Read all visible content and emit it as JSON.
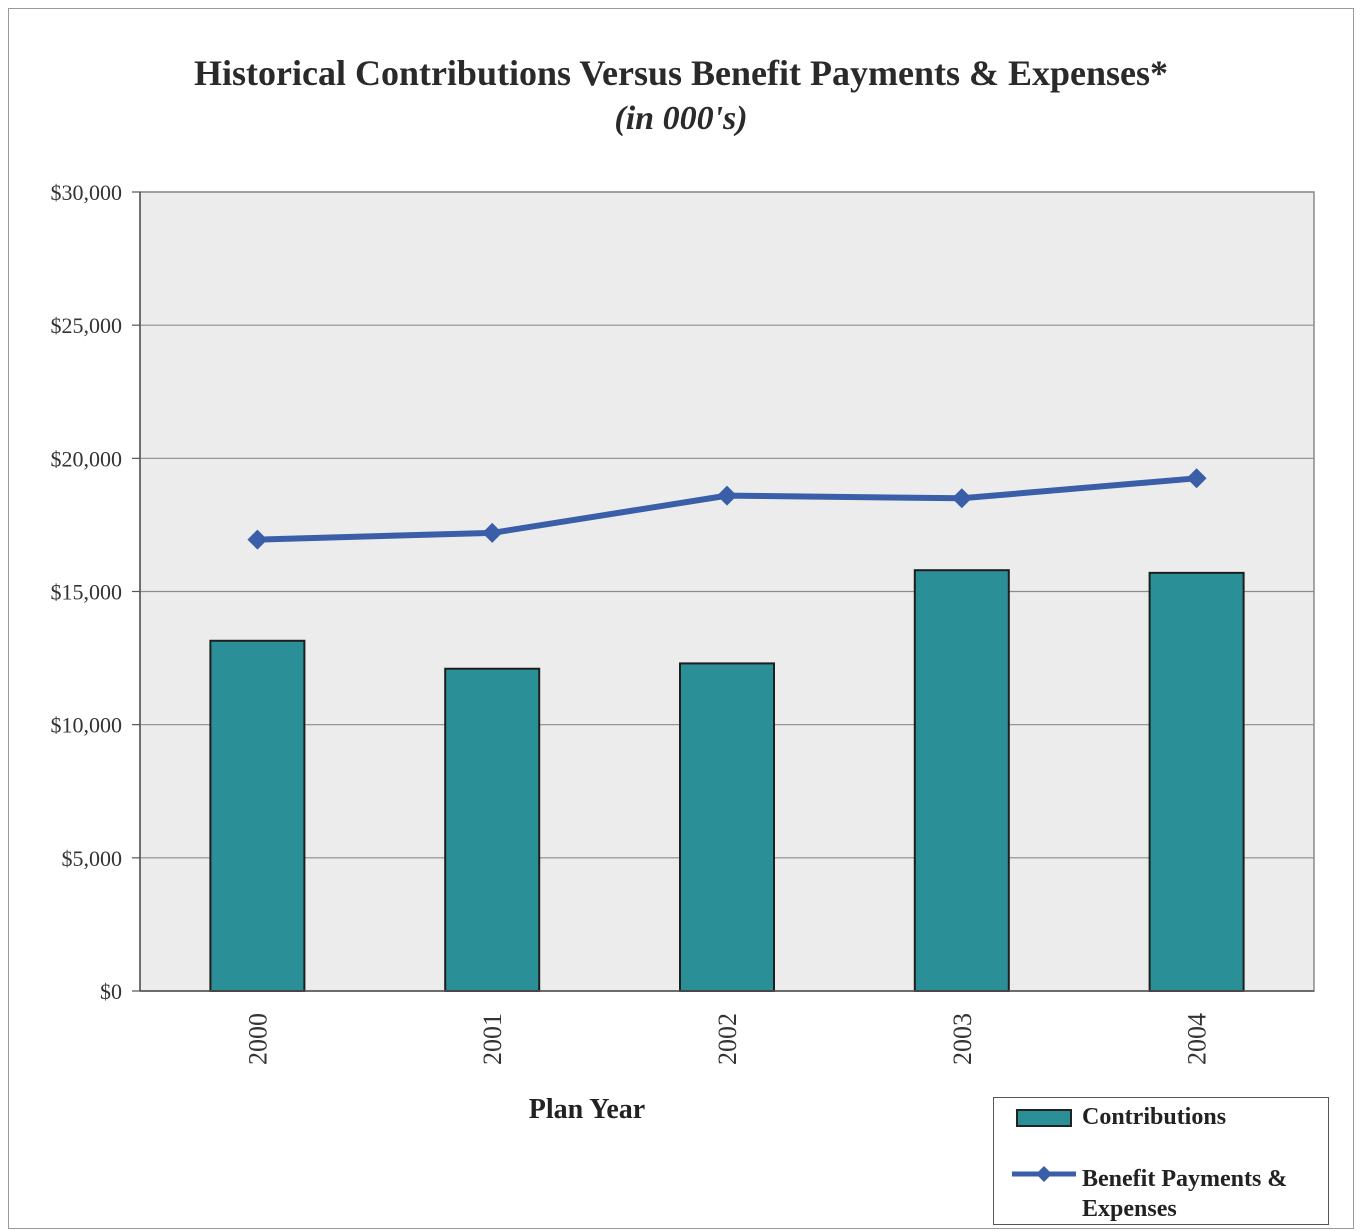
{
  "chart_data": {
    "type": "bar",
    "title": "Historical Contributions Versus Benefit Payments & Expenses*",
    "subtitle": "(in 000's)",
    "xlabel": "Plan Year",
    "ylabel": "",
    "categories": [
      "2000",
      "2001",
      "2002",
      "2003",
      "2004"
    ],
    "ylim": [
      0,
      30000
    ],
    "yticks": [
      "$0",
      "$5,000",
      "$10,000",
      "$15,000",
      "$20,000",
      "$25,000",
      "$30,000"
    ],
    "ytick_values": [
      0,
      5000,
      10000,
      15000,
      20000,
      25000,
      30000
    ],
    "series": [
      {
        "name": "Contributions",
        "type": "bar",
        "color": "#2a8f97",
        "values": [
          13150,
          12100,
          12300,
          15800,
          15700
        ]
      },
      {
        "name": "Benefit Payments & Expenses",
        "type": "line",
        "color": "#3a5fa8",
        "values": [
          16950,
          17200,
          18600,
          18500,
          19250
        ]
      }
    ],
    "grid": true,
    "legend_position": "bottom-right",
    "plot_background": "#ececec"
  },
  "legend": {
    "item1": "Contributions",
    "item2": "Benefit Payments & Expenses"
  }
}
